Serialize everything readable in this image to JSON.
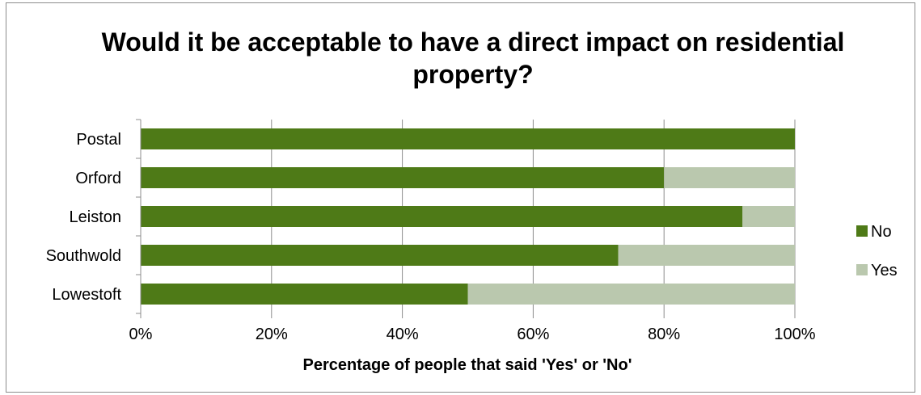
{
  "chart_data": {
    "type": "bar",
    "orientation": "horizontal",
    "stacked": "percent",
    "title": "Would it be acceptable to have a direct impact on residential property?",
    "xlabel": "Percentage of people that said 'Yes' or 'No'",
    "ylabel": "",
    "categories": [
      "Postal",
      "Orford",
      "Leiston",
      "Southwold",
      "Lowestoft"
    ],
    "series": [
      {
        "name": "No",
        "color": "#4e7a17",
        "values": [
          100,
          80,
          92,
          73,
          50
        ]
      },
      {
        "name": "Yes",
        "color": "#bac8ae",
        "values": [
          0,
          20,
          8,
          27,
          50
        ]
      }
    ],
    "xlim": [
      0,
      100
    ],
    "xticks": [
      "0%",
      "20%",
      "40%",
      "60%",
      "80%",
      "100%"
    ],
    "grid": "vertical",
    "legend_position": "right"
  }
}
